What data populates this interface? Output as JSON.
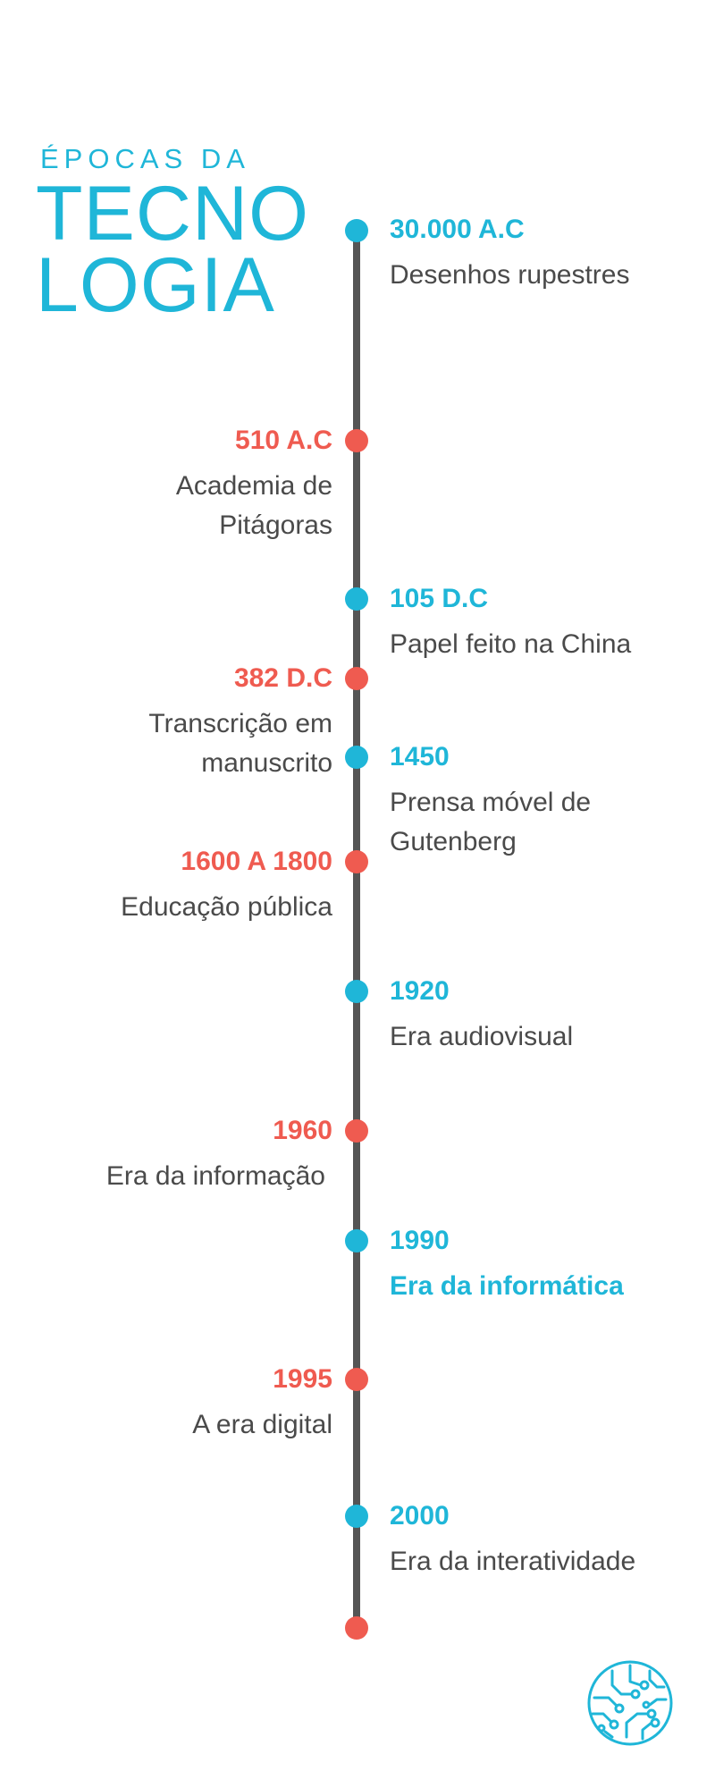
{
  "header": {
    "eyebrow": "ÉPOCAS DA",
    "title_line1": "TECNO",
    "title_line2": "LOGIA"
  },
  "colors": {
    "blue": "#1fb6d8",
    "red": "#ef5b50",
    "line": "#555555",
    "text": "#4a4a4a"
  },
  "events": [
    {
      "date": "30.000 A.C",
      "desc": "Desenhos rupestres",
      "side": "right",
      "color": "blue"
    },
    {
      "date": "510 A.C",
      "desc": "Academia de Pitágoras",
      "side": "left",
      "color": "red"
    },
    {
      "date": "105 D.C",
      "desc": "Papel feito na China",
      "side": "right",
      "color": "blue"
    },
    {
      "date": "382 D.C",
      "desc": "Transcrição em manuscrito",
      "side": "left",
      "color": "red"
    },
    {
      "date": "1450",
      "desc": "Prensa móvel de Gutenberg",
      "side": "right",
      "color": "blue"
    },
    {
      "date": "1600 A 1800",
      "desc": "Educação pública",
      "side": "left",
      "color": "red"
    },
    {
      "date": "1920",
      "desc": "Era audiovisual",
      "side": "right",
      "color": "blue"
    },
    {
      "date": "1960",
      "desc": "Era da informação",
      "side": "left",
      "color": "red"
    },
    {
      "date": "1990",
      "desc": "Era da informática",
      "side": "right",
      "color": "blue",
      "emphasis": true
    },
    {
      "date": "1995",
      "desc": "A era digital",
      "side": "left",
      "color": "red"
    },
    {
      "date": "2000",
      "desc": "Era da interatividade",
      "side": "right",
      "color": "blue"
    }
  ],
  "footer": {
    "icon": "circuit-icon"
  }
}
